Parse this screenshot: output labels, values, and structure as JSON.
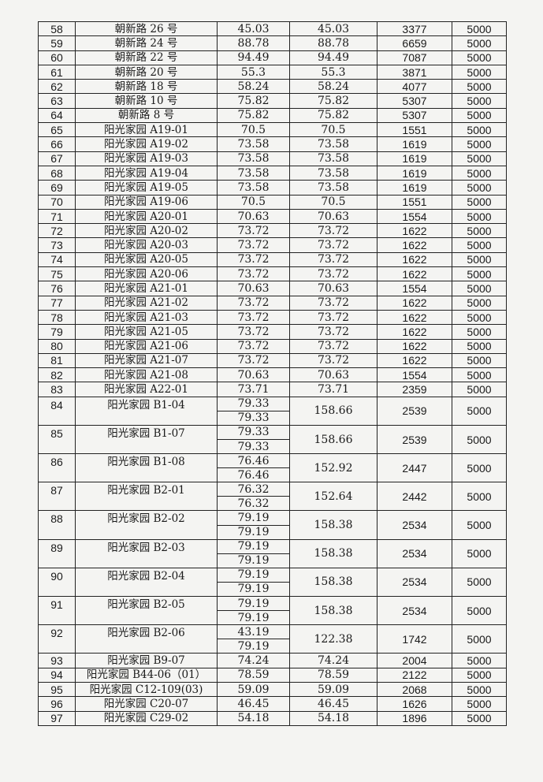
{
  "table": {
    "rows": [
      {
        "no": "58",
        "name": "朝新路 26 号",
        "areas": [
          "45.03"
        ],
        "total": "45.03",
        "amount": "3377",
        "price": "5000"
      },
      {
        "no": "59",
        "name": "朝新路 24 号",
        "areas": [
          "88.78"
        ],
        "total": "88.78",
        "amount": "6659",
        "price": "5000"
      },
      {
        "no": "60",
        "name": "朝新路 22 号",
        "areas": [
          "94.49"
        ],
        "total": "94.49",
        "amount": "7087",
        "price": "5000"
      },
      {
        "no": "61",
        "name": "朝新路 20 号",
        "areas": [
          "55.3"
        ],
        "total": "55.3",
        "amount": "3871",
        "price": "5000"
      },
      {
        "no": "62",
        "name": "朝新路 18 号",
        "areas": [
          "58.24"
        ],
        "total": "58.24",
        "amount": "4077",
        "price": "5000"
      },
      {
        "no": "63",
        "name": "朝新路 10 号",
        "areas": [
          "75.82"
        ],
        "total": "75.82",
        "amount": "5307",
        "price": "5000"
      },
      {
        "no": "64",
        "name": "朝新路 8 号",
        "areas": [
          "75.82"
        ],
        "total": "75.82",
        "amount": "5307",
        "price": "5000"
      },
      {
        "no": "65",
        "name": "阳光家园 A19-01",
        "areas": [
          "70.5"
        ],
        "total": "70.5",
        "amount": "1551",
        "price": "5000"
      },
      {
        "no": "66",
        "name": "阳光家园 A19-02",
        "areas": [
          "73.58"
        ],
        "total": "73.58",
        "amount": "1619",
        "price": "5000"
      },
      {
        "no": "67",
        "name": "阳光家园 A19-03",
        "areas": [
          "73.58"
        ],
        "total": "73.58",
        "amount": "1619",
        "price": "5000"
      },
      {
        "no": "68",
        "name": "阳光家园 A19-04",
        "areas": [
          "73.58"
        ],
        "total": "73.58",
        "amount": "1619",
        "price": "5000"
      },
      {
        "no": "69",
        "name": "阳光家园 A19-05",
        "areas": [
          "73.58"
        ],
        "total": "73.58",
        "amount": "1619",
        "price": "5000"
      },
      {
        "no": "70",
        "name": "阳光家园 A19-06",
        "areas": [
          "70.5"
        ],
        "total": "70.5",
        "amount": "1551",
        "price": "5000"
      },
      {
        "no": "71",
        "name": "阳光家园 A20-01",
        "areas": [
          "70.63"
        ],
        "total": "70.63",
        "amount": "1554",
        "price": "5000"
      },
      {
        "no": "72",
        "name": "阳光家园 A20-02",
        "areas": [
          "73.72"
        ],
        "total": "73.72",
        "amount": "1622",
        "price": "5000"
      },
      {
        "no": "73",
        "name": "阳光家园 A20-03",
        "areas": [
          "73.72"
        ],
        "total": "73.72",
        "amount": "1622",
        "price": "5000"
      },
      {
        "no": "74",
        "name": "阳光家园 A20-05",
        "areas": [
          "73.72"
        ],
        "total": "73.72",
        "amount": "1622",
        "price": "5000"
      },
      {
        "no": "75",
        "name": "阳光家园 A20-06",
        "areas": [
          "73.72"
        ],
        "total": "73.72",
        "amount": "1622",
        "price": "5000"
      },
      {
        "no": "76",
        "name": "阳光家园 A21-01",
        "areas": [
          "70.63"
        ],
        "total": "70.63",
        "amount": "1554",
        "price": "5000"
      },
      {
        "no": "77",
        "name": "阳光家园 A21-02",
        "areas": [
          "73.72"
        ],
        "total": "73.72",
        "amount": "1622",
        "price": "5000"
      },
      {
        "no": "78",
        "name": "阳光家园 A21-03",
        "areas": [
          "73.72"
        ],
        "total": "73.72",
        "amount": "1622",
        "price": "5000"
      },
      {
        "no": "79",
        "name": "阳光家园 A21-05",
        "areas": [
          "73.72"
        ],
        "total": "73.72",
        "amount": "1622",
        "price": "5000"
      },
      {
        "no": "80",
        "name": "阳光家园 A21-06",
        "areas": [
          "73.72"
        ],
        "total": "73.72",
        "amount": "1622",
        "price": "5000"
      },
      {
        "no": "81",
        "name": "阳光家园 A21-07",
        "areas": [
          "73.72"
        ],
        "total": "73.72",
        "amount": "1622",
        "price": "5000"
      },
      {
        "no": "82",
        "name": "阳光家园 A21-08",
        "areas": [
          "70.63"
        ],
        "total": "70.63",
        "amount": "1554",
        "price": "5000"
      },
      {
        "no": "83",
        "name": "阳光家园 A22-01",
        "areas": [
          "73.71"
        ],
        "total": "73.71",
        "amount": "2359",
        "price": "5000"
      },
      {
        "no": "84",
        "name": "阳光家园 B1-04",
        "areas": [
          "79.33",
          "79.33"
        ],
        "total": "158.66",
        "amount": "2539",
        "price": "5000"
      },
      {
        "no": "85",
        "name": "阳光家园 B1-07",
        "areas": [
          "79.33",
          "79.33"
        ],
        "total": "158.66",
        "amount": "2539",
        "price": "5000"
      },
      {
        "no": "86",
        "name": "阳光家园 B1-08",
        "areas": [
          "76.46",
          "76.46"
        ],
        "total": "152.92",
        "amount": "2447",
        "price": "5000"
      },
      {
        "no": "87",
        "name": "阳光家园 B2-01",
        "areas": [
          "76.32",
          "76.32"
        ],
        "total": "152.64",
        "amount": "2442",
        "price": "5000"
      },
      {
        "no": "88",
        "name": "阳光家园 B2-02",
        "areas": [
          "79.19",
          "79.19"
        ],
        "total": "158.38",
        "amount": "2534",
        "price": "5000"
      },
      {
        "no": "89",
        "name": "阳光家园 B2-03",
        "areas": [
          "79.19",
          "79.19"
        ],
        "total": "158.38",
        "amount": "2534",
        "price": "5000"
      },
      {
        "no": "90",
        "name": "阳光家园 B2-04",
        "areas": [
          "79.19",
          "79.19"
        ],
        "total": "158.38",
        "amount": "2534",
        "price": "5000"
      },
      {
        "no": "91",
        "name": "阳光家园 B2-05",
        "areas": [
          "79.19",
          "79.19"
        ],
        "total": "158.38",
        "amount": "2534",
        "price": "5000"
      },
      {
        "no": "92",
        "name": "阳光家园 B2-06",
        "areas": [
          "43.19",
          "79.19"
        ],
        "total": "122.38",
        "amount": "1742",
        "price": "5000"
      },
      {
        "no": "93",
        "name": "阳光家园 B9-07",
        "areas": [
          "74.24"
        ],
        "total": "74.24",
        "amount": "2004",
        "price": "5000"
      },
      {
        "no": "94",
        "name": "阳光家园 B44-06（01）",
        "areas": [
          "78.59"
        ],
        "total": "78.59",
        "amount": "2122",
        "price": "5000"
      },
      {
        "no": "95",
        "name": "阳光家园 C12-109(03)",
        "areas": [
          "59.09"
        ],
        "total": "59.09",
        "amount": "2068",
        "price": "5000"
      },
      {
        "no": "96",
        "name": "阳光家园 C20-07",
        "areas": [
          "46.45"
        ],
        "total": "46.45",
        "amount": "1626",
        "price": "5000"
      },
      {
        "no": "97",
        "name": "阳光家园 C29-02",
        "areas": [
          "54.18"
        ],
        "total": "54.18",
        "amount": "1896",
        "price": "5000"
      }
    ]
  }
}
